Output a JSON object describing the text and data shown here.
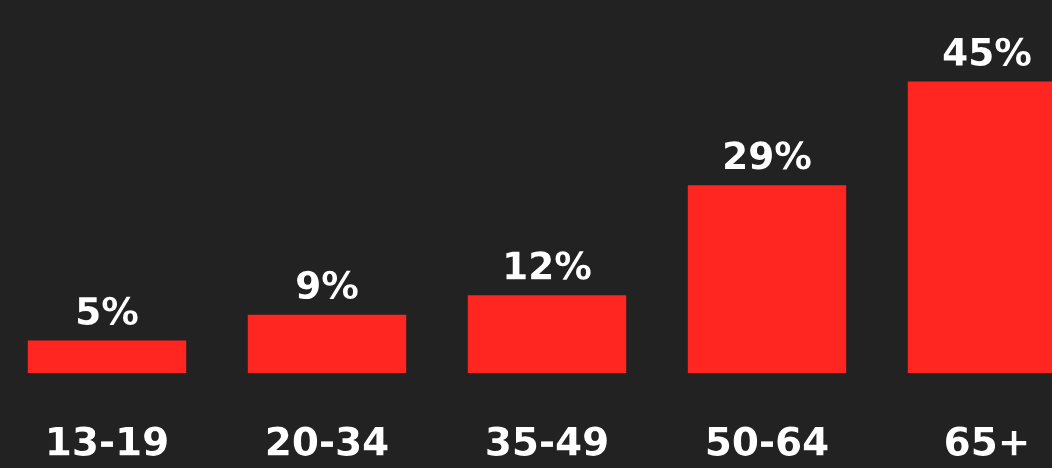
{
  "chart_data": {
    "type": "bar",
    "categories": [
      "13-19",
      "20-34",
      "35-49",
      "50-64",
      "65+"
    ],
    "values": [
      5,
      9,
      12,
      29,
      45
    ],
    "value_labels": [
      "5%",
      "9%",
      "12%",
      "29%",
      "45%"
    ],
    "color": "#ff2622",
    "grid": false,
    "legend": false
  }
}
